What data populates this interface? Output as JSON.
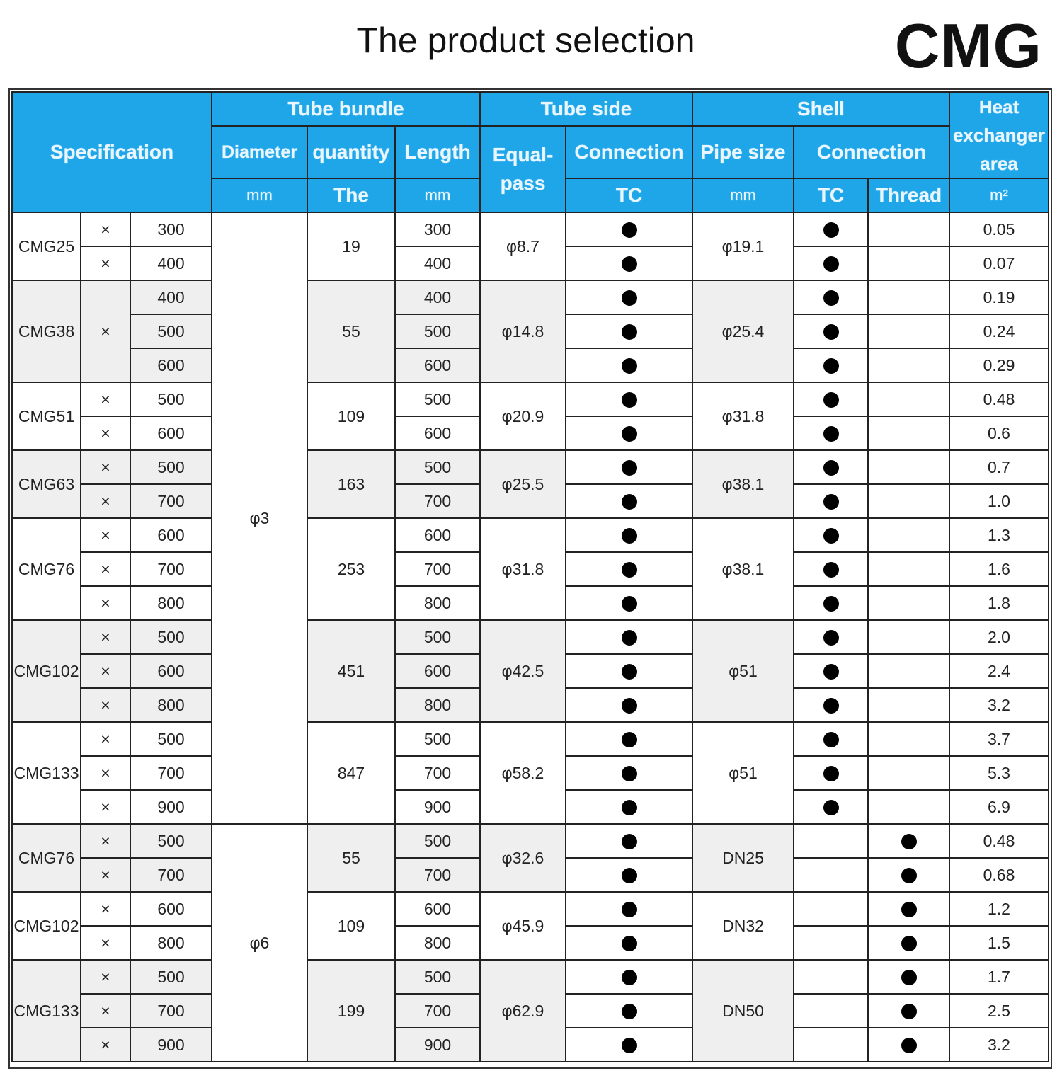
{
  "title": "The product selection",
  "brand": "CMG",
  "header": {
    "specification": "Specification",
    "tube_bundle": "Tube bundle",
    "diameter": "Diameter",
    "quantity": "quantity",
    "length": "Length",
    "tube_side": "Tube side",
    "equal_pass": "Equal-pass",
    "connection": "Connection",
    "shell": "Shell",
    "pipe_size": "Pipe size",
    "shell_connection": "Connection",
    "heat_area": "Heat exchanger area",
    "units": {
      "diameter": "mm",
      "quantity": "The",
      "length": "mm",
      "tube_tc": "TC",
      "pipe_size": "mm",
      "shell_tc": "TC",
      "thread": "Thread",
      "area": "m²"
    }
  },
  "marker": "×",
  "colors": {
    "header_bg": "#1fa6e8",
    "header_text": "#eaf6ff",
    "alt_row": "#efefef"
  },
  "diameters": [
    {
      "value": "φ3",
      "groups": 7
    },
    {
      "value": "φ6",
      "groups": 3
    }
  ],
  "groups": [
    {
      "model": "CMG25",
      "single_marker": false,
      "lengths": [
        "300",
        "400"
      ],
      "quantity": "19",
      "equal_pass": "φ8.7",
      "tube_tc": true,
      "pipe_size": "φ19.1",
      "shell_tc": true,
      "thread": false,
      "areas": [
        "0.05",
        "0.07"
      ]
    },
    {
      "model": "CMG38",
      "single_marker": true,
      "lengths": [
        "400",
        "500",
        "600"
      ],
      "quantity": "55",
      "equal_pass": "φ14.8",
      "tube_tc": true,
      "pipe_size": "φ25.4",
      "shell_tc": true,
      "thread": false,
      "areas": [
        "0.19",
        "0.24",
        "0.29"
      ]
    },
    {
      "model": "CMG51",
      "single_marker": false,
      "lengths": [
        "500",
        "600"
      ],
      "quantity": "109",
      "equal_pass": "φ20.9",
      "tube_tc": true,
      "pipe_size": "φ31.8",
      "shell_tc": true,
      "thread": false,
      "areas": [
        "0.48",
        "0.6"
      ]
    },
    {
      "model": "CMG63",
      "single_marker": false,
      "lengths": [
        "500",
        "700"
      ],
      "quantity": "163",
      "equal_pass": "φ25.5",
      "tube_tc": true,
      "pipe_size": "φ38.1",
      "shell_tc": true,
      "thread": false,
      "areas": [
        "0.7",
        "1.0"
      ]
    },
    {
      "model": "CMG76",
      "single_marker": false,
      "lengths": [
        "600",
        "700",
        "800"
      ],
      "quantity": "253",
      "equal_pass": "φ31.8",
      "tube_tc": true,
      "pipe_size": "φ38.1",
      "shell_tc": true,
      "thread": false,
      "areas": [
        "1.3",
        "1.6",
        "1.8"
      ]
    },
    {
      "model": "CMG102",
      "single_marker": false,
      "lengths": [
        "500",
        "600",
        "800"
      ],
      "quantity": "451",
      "equal_pass": "φ42.5",
      "tube_tc": true,
      "pipe_size": "φ51",
      "shell_tc": true,
      "thread": false,
      "areas": [
        "2.0",
        "2.4",
        "3.2"
      ]
    },
    {
      "model": "CMG133",
      "single_marker": false,
      "lengths": [
        "500",
        "700",
        "900"
      ],
      "quantity": "847",
      "equal_pass": "φ58.2",
      "tube_tc": true,
      "pipe_size": "φ51",
      "shell_tc": true,
      "thread": false,
      "areas": [
        "3.7",
        "5.3",
        "6.9"
      ]
    },
    {
      "model": "CMG76",
      "single_marker": false,
      "lengths": [
        "500",
        "700"
      ],
      "quantity": "55",
      "equal_pass": "φ32.6",
      "tube_tc": true,
      "pipe_size": "DN25",
      "shell_tc": false,
      "thread": true,
      "areas": [
        "0.48",
        "0.68"
      ]
    },
    {
      "model": "CMG102",
      "single_marker": false,
      "lengths": [
        "600",
        "800"
      ],
      "quantity": "109",
      "equal_pass": "φ45.9",
      "tube_tc": true,
      "pipe_size": "DN32",
      "shell_tc": false,
      "thread": true,
      "areas": [
        "1.2",
        "1.5"
      ]
    },
    {
      "model": "CMG133",
      "single_marker": false,
      "lengths": [
        "500",
        "700",
        "900"
      ],
      "quantity": "199",
      "equal_pass": "φ62.9",
      "tube_tc": true,
      "pipe_size": "DN50",
      "shell_tc": false,
      "thread": true,
      "areas": [
        "1.7",
        "2.5",
        "3.2"
      ]
    }
  ]
}
